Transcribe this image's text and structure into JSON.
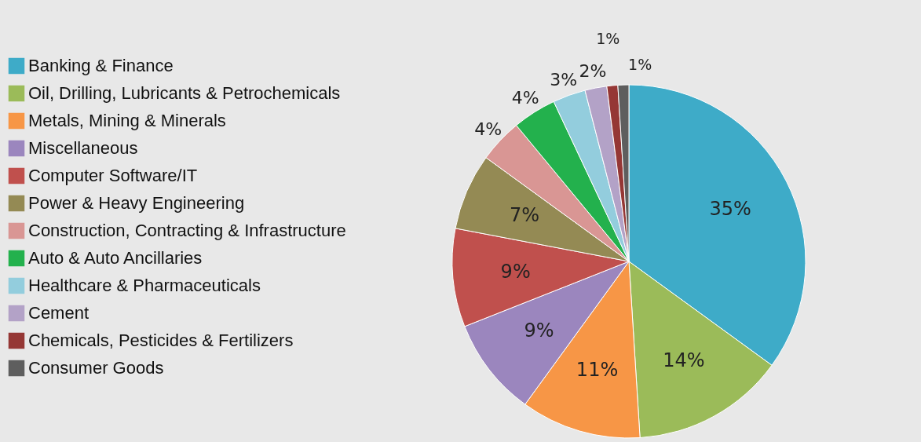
{
  "chart_data": {
    "type": "pie",
    "categories": [
      "Banking & Finance",
      "Oil, Drilling, Lubricants & Petrochemicals",
      "Metals, Mining & Minerals",
      "Miscellaneous",
      "Computer Software/IT",
      "Power & Heavy Engineering",
      "Construction, Contracting & Infrastructure",
      "Auto & Auto Ancillaries",
      "Healthcare & Pharmaceuticals",
      "Cement",
      "Chemicals, Pesticides & Fertilizers",
      "Consumer Goods"
    ],
    "values": [
      35,
      14,
      11,
      9,
      9,
      7,
      4,
      4,
      3,
      2,
      1,
      1
    ],
    "value_labels": [
      "35%",
      "14%",
      "11%",
      "9%",
      "9%",
      "7%",
      "4%",
      "4%",
      "3%",
      "2%",
      "1%",
      "1%"
    ],
    "colors": [
      "#3eabc8",
      "#9bbb59",
      "#f79646",
      "#9b86be",
      "#c0504d",
      "#948a54",
      "#d99694",
      "#23b14d",
      "#93cddd",
      "#b3a2c7",
      "#953735",
      "#5e5e5e"
    ],
    "legend": "left"
  }
}
